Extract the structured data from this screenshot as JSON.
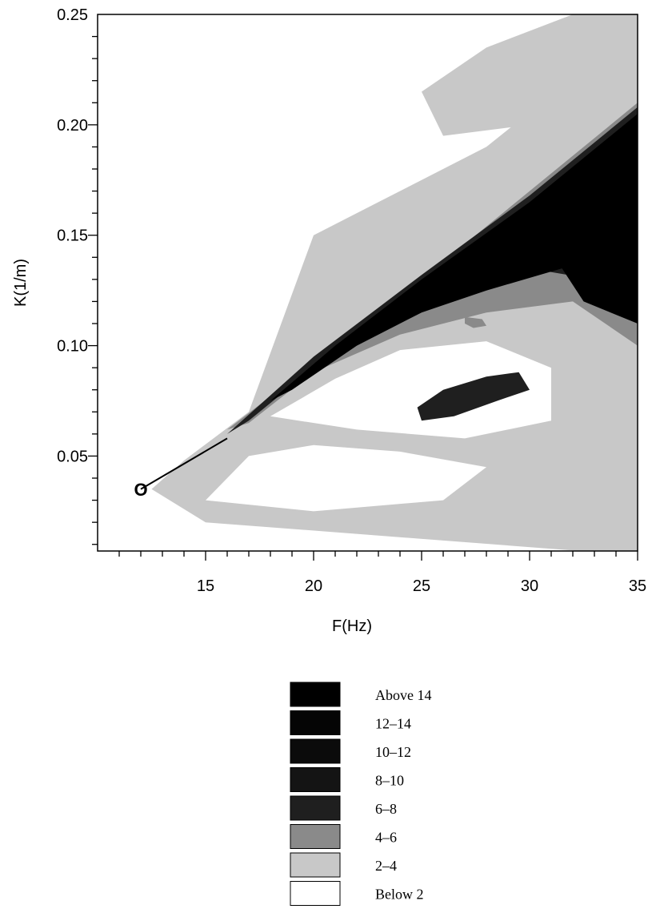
{
  "chart_data": {
    "type": "heatmap",
    "xlabel": "F(Hz)",
    "ylabel": "K(1/m)",
    "xlim": [
      10,
      35
    ],
    "ylim": [
      0.007,
      0.25
    ],
    "x_ticks": [
      15,
      20,
      25,
      30,
      35
    ],
    "y_ticks": [
      0.05,
      0.1,
      0.15,
      0.2,
      0.25
    ],
    "y_tick_labels": [
      "0.05",
      "0.10",
      "0.15",
      "0.20",
      "0.25"
    ],
    "grid": false,
    "origin_marker": {
      "label": "O",
      "x": 12.0,
      "y": 0.035
    },
    "ridge_line": {
      "from": [
        12.0,
        0.035
      ],
      "to": [
        16.0,
        0.058
      ]
    },
    "contour_levels": [
      {
        "label": "Above 14",
        "color": "#000000"
      },
      {
        "label": "12–14",
        "color": "#050505"
      },
      {
        "label": "10–12",
        "color": "#0b0b0b"
      },
      {
        "label": "8–10",
        "color": "#141414"
      },
      {
        "label": "6–8",
        "color": "#1f1f1f"
      },
      {
        "label": "4–6",
        "color": "#8a8a8a"
      },
      {
        "label": "2–4",
        "color": "#c8c8c8"
      },
      {
        "label": "Below 2",
        "color": "#ffffff"
      }
    ],
    "regions": [
      {
        "level": "2–4",
        "points": [
          [
            20,
            0.15
          ],
          [
            28,
            0.19
          ],
          [
            35,
            0.245
          ],
          [
            35,
            0.005
          ],
          [
            15,
            0.02
          ],
          [
            12.5,
            0.035
          ],
          [
            14,
            0.048
          ],
          [
            17,
            0.07
          ]
        ]
      },
      {
        "level": "2–4",
        "points": [
          [
            25,
            0.215
          ],
          [
            28,
            0.235
          ],
          [
            32,
            0.25
          ],
          [
            35,
            0.25
          ],
          [
            35,
            0.22
          ],
          [
            30,
            0.2
          ],
          [
            26,
            0.195
          ]
        ]
      },
      {
        "level": "Below 2",
        "points": [
          [
            21,
            0.085
          ],
          [
            24,
            0.098
          ],
          [
            28,
            0.102
          ],
          [
            31,
            0.09
          ],
          [
            31,
            0.066
          ],
          [
            27,
            0.058
          ],
          [
            22,
            0.062
          ],
          [
            18,
            0.068
          ]
        ]
      },
      {
        "level": "Below 2",
        "points": [
          [
            15,
            0.03
          ],
          [
            20,
            0.025
          ],
          [
            26,
            0.03
          ],
          [
            28,
            0.045
          ],
          [
            24,
            0.052
          ],
          [
            20,
            0.055
          ],
          [
            17,
            0.05
          ]
        ]
      },
      {
        "level": "Below 2",
        "points": [
          [
            22,
            0.11
          ],
          [
            26,
            0.118
          ],
          [
            30,
            0.13
          ],
          [
            32,
            0.145
          ],
          [
            32.5,
            0.15
          ],
          [
            31,
            0.135
          ],
          [
            28,
            0.122
          ],
          [
            24,
            0.112
          ]
        ]
      },
      {
        "level": "4–6",
        "points": [
          [
            16,
            0.062
          ],
          [
            20,
            0.092
          ],
          [
            25,
            0.13
          ],
          [
            30,
            0.17
          ],
          [
            35,
            0.21
          ],
          [
            35,
            0.1
          ],
          [
            32,
            0.12
          ],
          [
            28,
            0.115
          ],
          [
            24,
            0.105
          ],
          [
            20,
            0.088
          ],
          [
            17,
            0.065
          ]
        ]
      },
      {
        "level": "6–8",
        "points": [
          [
            16,
            0.06
          ],
          [
            20,
            0.095
          ],
          [
            25,
            0.132
          ],
          [
            30,
            0.168
          ],
          [
            35,
            0.208
          ],
          [
            35,
            0.11
          ],
          [
            33,
            0.13
          ],
          [
            30,
            0.135
          ],
          [
            27,
            0.125
          ],
          [
            23,
            0.108
          ],
          [
            20,
            0.09
          ],
          [
            17,
            0.066
          ]
        ]
      },
      {
        "level": "Above 14",
        "points": [
          [
            18,
            0.075
          ],
          [
            21,
            0.1
          ],
          [
            25,
            0.13
          ],
          [
            30,
            0.165
          ],
          [
            35,
            0.205
          ],
          [
            35,
            0.11
          ],
          [
            32.5,
            0.12
          ],
          [
            31.5,
            0.135
          ],
          [
            28,
            0.125
          ],
          [
            25,
            0.115
          ],
          [
            22,
            0.1
          ],
          [
            19,
            0.08
          ]
        ]
      },
      {
        "level": "6–8",
        "points": [
          [
            24.8,
            0.072
          ],
          [
            26,
            0.08
          ],
          [
            28,
            0.086
          ],
          [
            29.5,
            0.088
          ],
          [
            30,
            0.08
          ],
          [
            28.5,
            0.075
          ],
          [
            26.5,
            0.068
          ],
          [
            25,
            0.066
          ]
        ]
      },
      {
        "level": "4–6",
        "points": [
          [
            27,
            0.113
          ],
          [
            27.8,
            0.112
          ],
          [
            28,
            0.109
          ],
          [
            27.4,
            0.108
          ],
          [
            27,
            0.11
          ]
        ]
      }
    ]
  }
}
